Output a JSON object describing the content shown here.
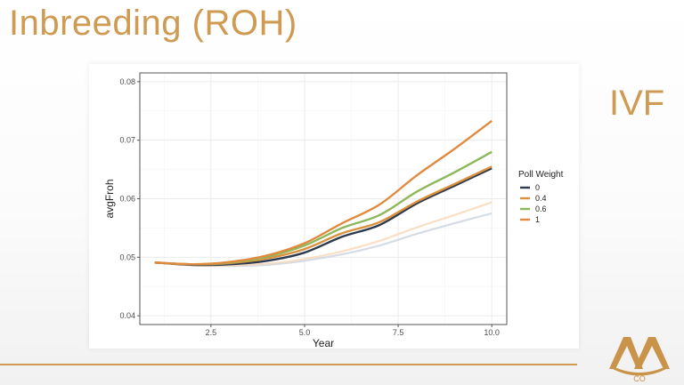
{
  "slide": {
    "title": "Inbreeding (ROH)",
    "side_label": "IVF",
    "top_right_text": "",
    "logo_text": "CO"
  },
  "colors": {
    "accent": "#cf9a52",
    "grid": "#ebebeb",
    "panel_border": "#555555"
  },
  "chart_data": {
    "type": "line",
    "xlabel": "Year",
    "ylabel": "avgFroh",
    "xlim": [
      0.6,
      10.4
    ],
    "ylim": [
      0.0385,
      0.0815
    ],
    "x_ticks": [
      2.5,
      5.0,
      7.5,
      10.0
    ],
    "x_tick_labels": [
      "2.5",
      "5.0",
      "7.5",
      "10.0"
    ],
    "y_ticks": [
      0.04,
      0.05,
      0.06,
      0.07,
      0.08
    ],
    "y_tick_labels": [
      "0.04",
      "0.05",
      "0.06",
      "0.07",
      "0.08"
    ],
    "grid": true,
    "legend": {
      "title": "Poll Weight",
      "position": "right"
    },
    "x": [
      1,
      2,
      3,
      4,
      5,
      6,
      7,
      8,
      9,
      10
    ],
    "series": [
      {
        "name": "0",
        "color": "#2e3a4f",
        "values": [
          0.0491,
          0.0487,
          0.0488,
          0.0494,
          0.0508,
          0.0535,
          0.0555,
          0.0592,
          0.0622,
          0.0652
        ]
      },
      {
        "name": "0.4",
        "color": "#d9913c",
        "values": [
          0.0491,
          0.0488,
          0.049,
          0.0498,
          0.0514,
          0.0541,
          0.056,
          0.0595,
          0.0625,
          0.0655
        ]
      },
      {
        "name": "0.6",
        "color": "#8db85a",
        "values": [
          0.0491,
          0.0488,
          0.0491,
          0.0501,
          0.052,
          0.055,
          0.0572,
          0.0612,
          0.0645,
          0.068
        ]
      },
      {
        "name": "1",
        "color": "#e08a3f",
        "values": [
          0.0491,
          0.0488,
          0.0492,
          0.0503,
          0.0524,
          0.0558,
          0.059,
          0.064,
          0.0685,
          0.0733
        ]
      }
    ],
    "faded_series": [
      {
        "color": "#ccd3e0",
        "values": [
          0.0491,
          0.0486,
          0.0485,
          0.0487,
          0.0494,
          0.0505,
          0.052,
          0.054,
          0.0558,
          0.0575
        ]
      },
      {
        "color": "#f6d7b8",
        "values": [
          0.0491,
          0.0486,
          0.0486,
          0.0489,
          0.0497,
          0.051,
          0.0528,
          0.0551,
          0.0572,
          0.0594
        ]
      }
    ]
  }
}
